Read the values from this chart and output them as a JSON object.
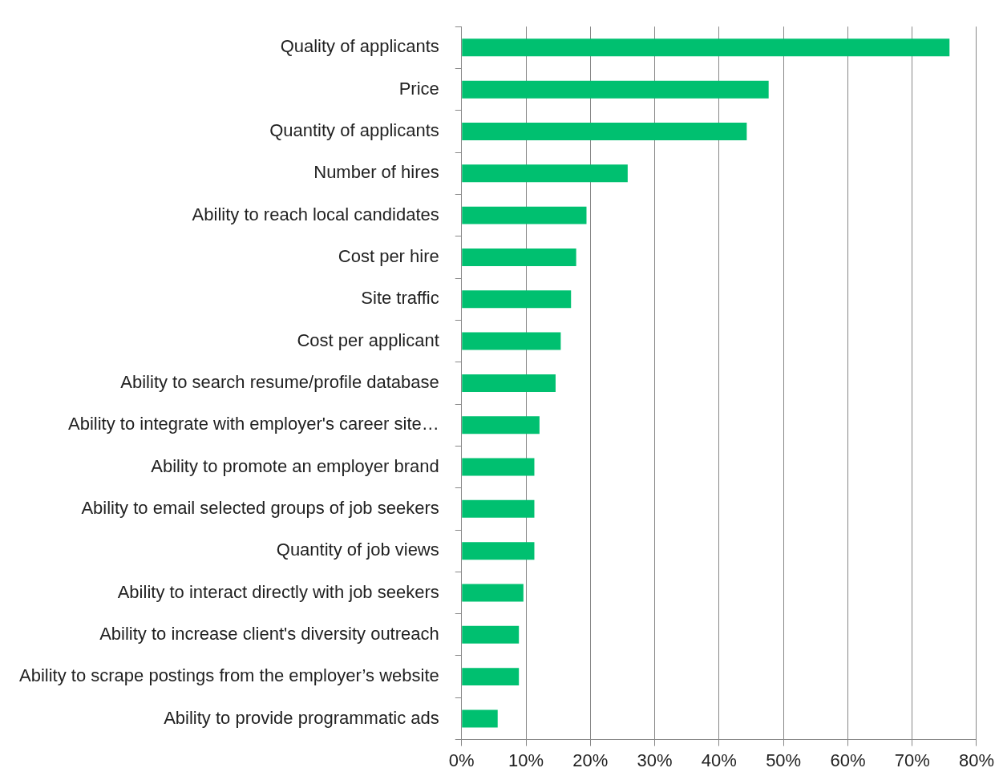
{
  "chart_data": {
    "type": "bar",
    "orientation": "horizontal",
    "categories": [
      "Quality of applicants",
      "Price",
      "Quantity of applicants",
      "Number of hires",
      "Ability to reach local candidates",
      "Cost per hire",
      "Site traffic",
      "Cost per applicant",
      "Ability to search resume/profile database",
      "Ability to integrate with employer's career site…",
      "Ability to promote an employer brand",
      "Ability to email selected groups of job seekers",
      "Quantity of job views",
      "Ability to interact directly with job seekers",
      "Ability to increase client's diversity outreach",
      "Ability to scrape postings from the employer’s website",
      "Ability to provide programmatic ads"
    ],
    "values": [
      75.8,
      47.7,
      44.3,
      25.8,
      19.4,
      17.8,
      17.0,
      15.4,
      14.6,
      12.1,
      11.3,
      11.3,
      11.3,
      9.6,
      8.9,
      8.9,
      5.6
    ],
    "color": "#00c070",
    "xlim": [
      0,
      80
    ],
    "xticks": [
      {
        "value": 0,
        "label": "0%"
      },
      {
        "value": 10,
        "label": "10%"
      },
      {
        "value": 20,
        "label": "20%"
      },
      {
        "value": 30,
        "label": "30%"
      },
      {
        "value": 40,
        "label": "40%"
      },
      {
        "value": 50,
        "label": "50%"
      },
      {
        "value": 60,
        "label": "60%"
      },
      {
        "value": 70,
        "label": "70%"
      },
      {
        "value": 80,
        "label": "80%"
      }
    ],
    "grid": "x",
    "legend": false
  }
}
